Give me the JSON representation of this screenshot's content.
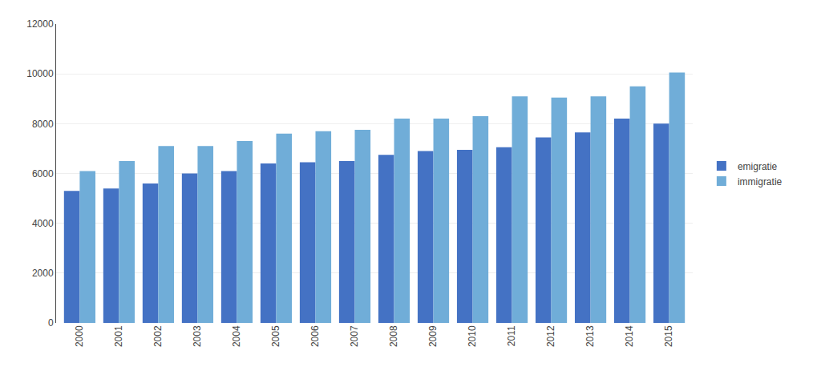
{
  "chart_data": {
    "type": "bar",
    "categories": [
      "2000",
      "2001",
      "2002",
      "2003",
      "2004",
      "2005",
      "2006",
      "2007",
      "2008",
      "2009",
      "2010",
      "2011",
      "2012",
      "2013",
      "2014",
      "2015"
    ],
    "series": [
      {
        "name": "emigratie",
        "color": "#4472C4",
        "values": [
          5300,
          5400,
          5600,
          6000,
          6100,
          6400,
          6450,
          6500,
          6750,
          6900,
          6950,
          7050,
          7450,
          7650,
          8200,
          8000
        ]
      },
      {
        "name": "immigratie",
        "color": "#70ADD8",
        "values": [
          6100,
          6500,
          7100,
          7100,
          7300,
          7600,
          7700,
          7750,
          8200,
          8200,
          8300,
          9100,
          9050,
          9100,
          9500,
          10050
        ]
      }
    ],
    "ylim": [
      0,
      12000
    ],
    "yticks": [
      0,
      2000,
      4000,
      6000,
      8000,
      10000,
      12000
    ],
    "grid": true,
    "legend": "right"
  }
}
